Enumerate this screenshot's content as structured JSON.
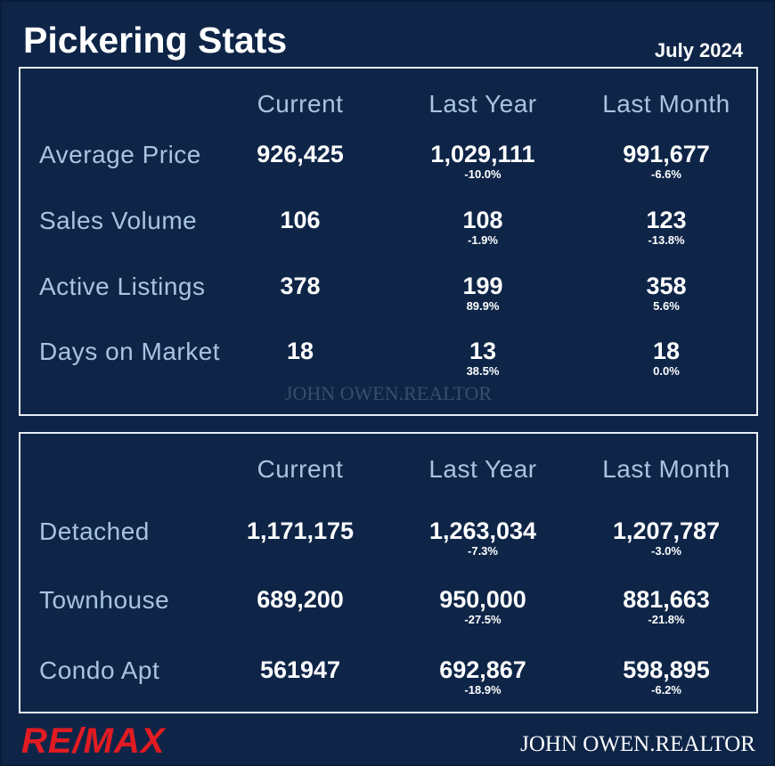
{
  "header": {
    "title": "Pickering Stats",
    "date": "July 2024"
  },
  "stats": {
    "columns": [
      "Current",
      "Last Year",
      "Last Month"
    ],
    "watermark": "JOHN OWEN.REALTOR",
    "rows": [
      {
        "label": "Average Price",
        "current": "926,425",
        "last_year": "1,029,111",
        "last_year_change": "-10.0%",
        "last_month": "991,677",
        "last_month_change": "-6.6%"
      },
      {
        "label": "Sales Volume",
        "current": "106",
        "last_year": "108",
        "last_year_change": "-1.9%",
        "last_month": "123",
        "last_month_change": "-13.8%"
      },
      {
        "label": "Active Listings",
        "current": "378",
        "last_year": "199",
        "last_year_change": "89.9%",
        "last_month": "358",
        "last_month_change": "5.6%"
      },
      {
        "label": "Days on Market",
        "current": "18",
        "last_year": "13",
        "last_year_change": "38.5%",
        "last_month": "18",
        "last_month_change": "0.0%"
      }
    ]
  },
  "prices": {
    "columns": [
      "Current",
      "Last Year",
      "Last Month"
    ],
    "rows": [
      {
        "label": "Detached",
        "current": "1,171,175",
        "last_year": "1,263,034",
        "last_year_change": "-7.3%",
        "last_month": "1,207,787",
        "last_month_change": "-3.0%"
      },
      {
        "label": "Townhouse",
        "current": "689,200",
        "last_year": "950,000",
        "last_year_change": "-27.5%",
        "last_month": "881,663",
        "last_month_change": "-21.8%"
      },
      {
        "label": "Condo Apt",
        "current": "561947",
        "last_year": "692,867",
        "last_year_change": "-18.9%",
        "last_month": "598,895",
        "last_month_change": "-6.2%"
      }
    ]
  },
  "footer": {
    "logo": "RE/MAX",
    "signature": "JOHN OWEN.REALTOR"
  }
}
